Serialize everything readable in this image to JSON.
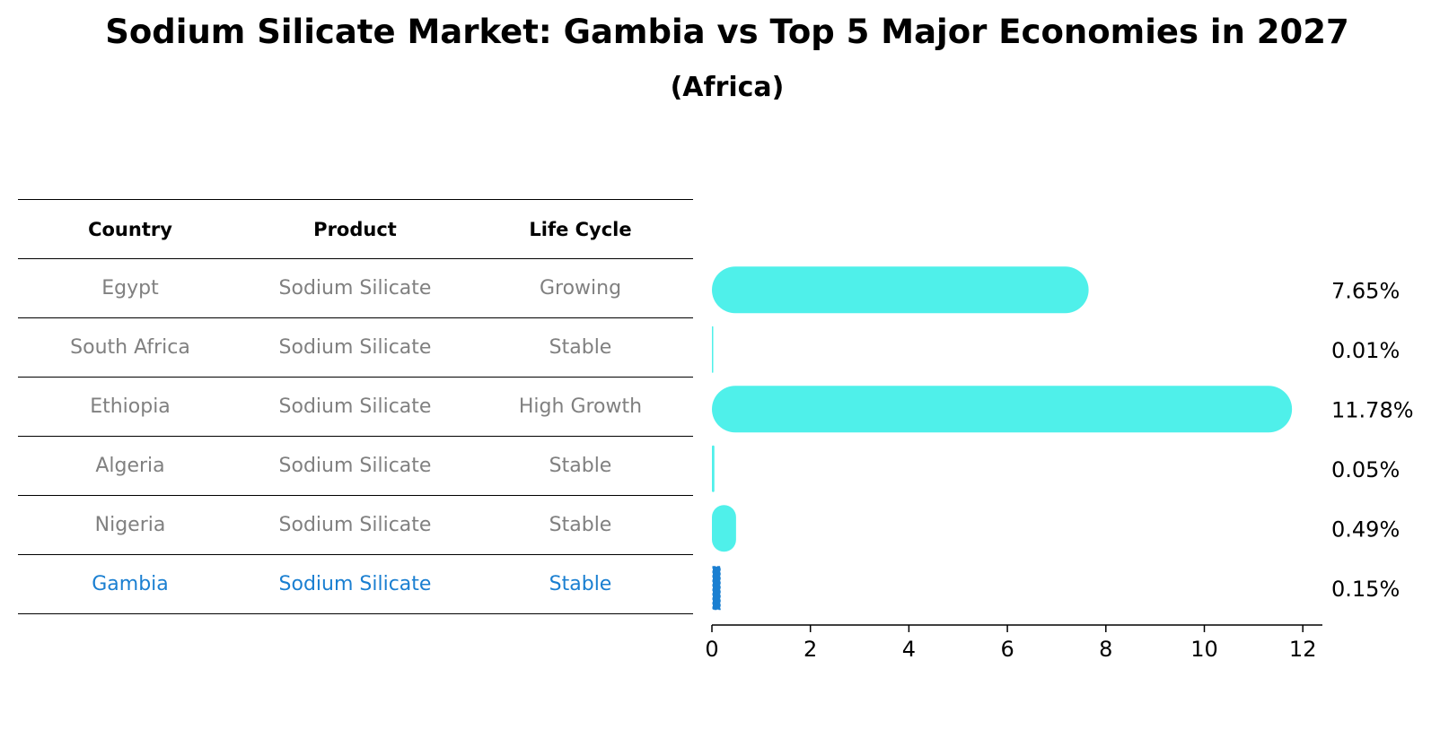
{
  "title": "Sodium Silicate Market: Gambia vs Top 5 Major Economies in 2027",
  "subtitle": "(Africa)",
  "table": {
    "headers": [
      "Country",
      "Product",
      "Life Cycle"
    ],
    "rows": [
      {
        "country": "Egypt",
        "product": "Sodium Silicate",
        "life_cycle": "Growing"
      },
      {
        "country": "South Africa",
        "product": "Sodium Silicate",
        "life_cycle": "Stable"
      },
      {
        "country": "Ethiopia",
        "product": "Sodium Silicate",
        "life_cycle": "High Growth"
      },
      {
        "country": "Algeria",
        "product": "Sodium Silicate",
        "life_cycle": "Stable"
      },
      {
        "country": "Nigeria",
        "product": "Sodium Silicate",
        "life_cycle": "Stable"
      },
      {
        "country": "Gambia",
        "product": "Sodium Silicate",
        "life_cycle": "Stable"
      }
    ]
  },
  "colors": {
    "bar": "#4ff0ea",
    "highlight": "#1a7fd1",
    "muted_text": "#808080"
  },
  "chart_data": {
    "type": "bar",
    "orientation": "horizontal",
    "categories": [
      "Egypt",
      "South Africa",
      "Ethiopia",
      "Algeria",
      "Nigeria",
      "Gambia"
    ],
    "values": [
      7.65,
      0.01,
      11.78,
      0.05,
      0.49,
      0.15
    ],
    "value_labels": [
      "7.65%",
      "0.01%",
      "11.78%",
      "0.05%",
      "0.49%",
      "0.15%"
    ],
    "highlight": "Gambia",
    "xlim": [
      0,
      12.4
    ],
    "xticks": [
      0,
      2,
      4,
      6,
      8,
      10,
      12
    ],
    "xtick_labels": [
      "0",
      "2",
      "4",
      "6",
      "8",
      "10",
      "12"
    ],
    "grid": false
  }
}
